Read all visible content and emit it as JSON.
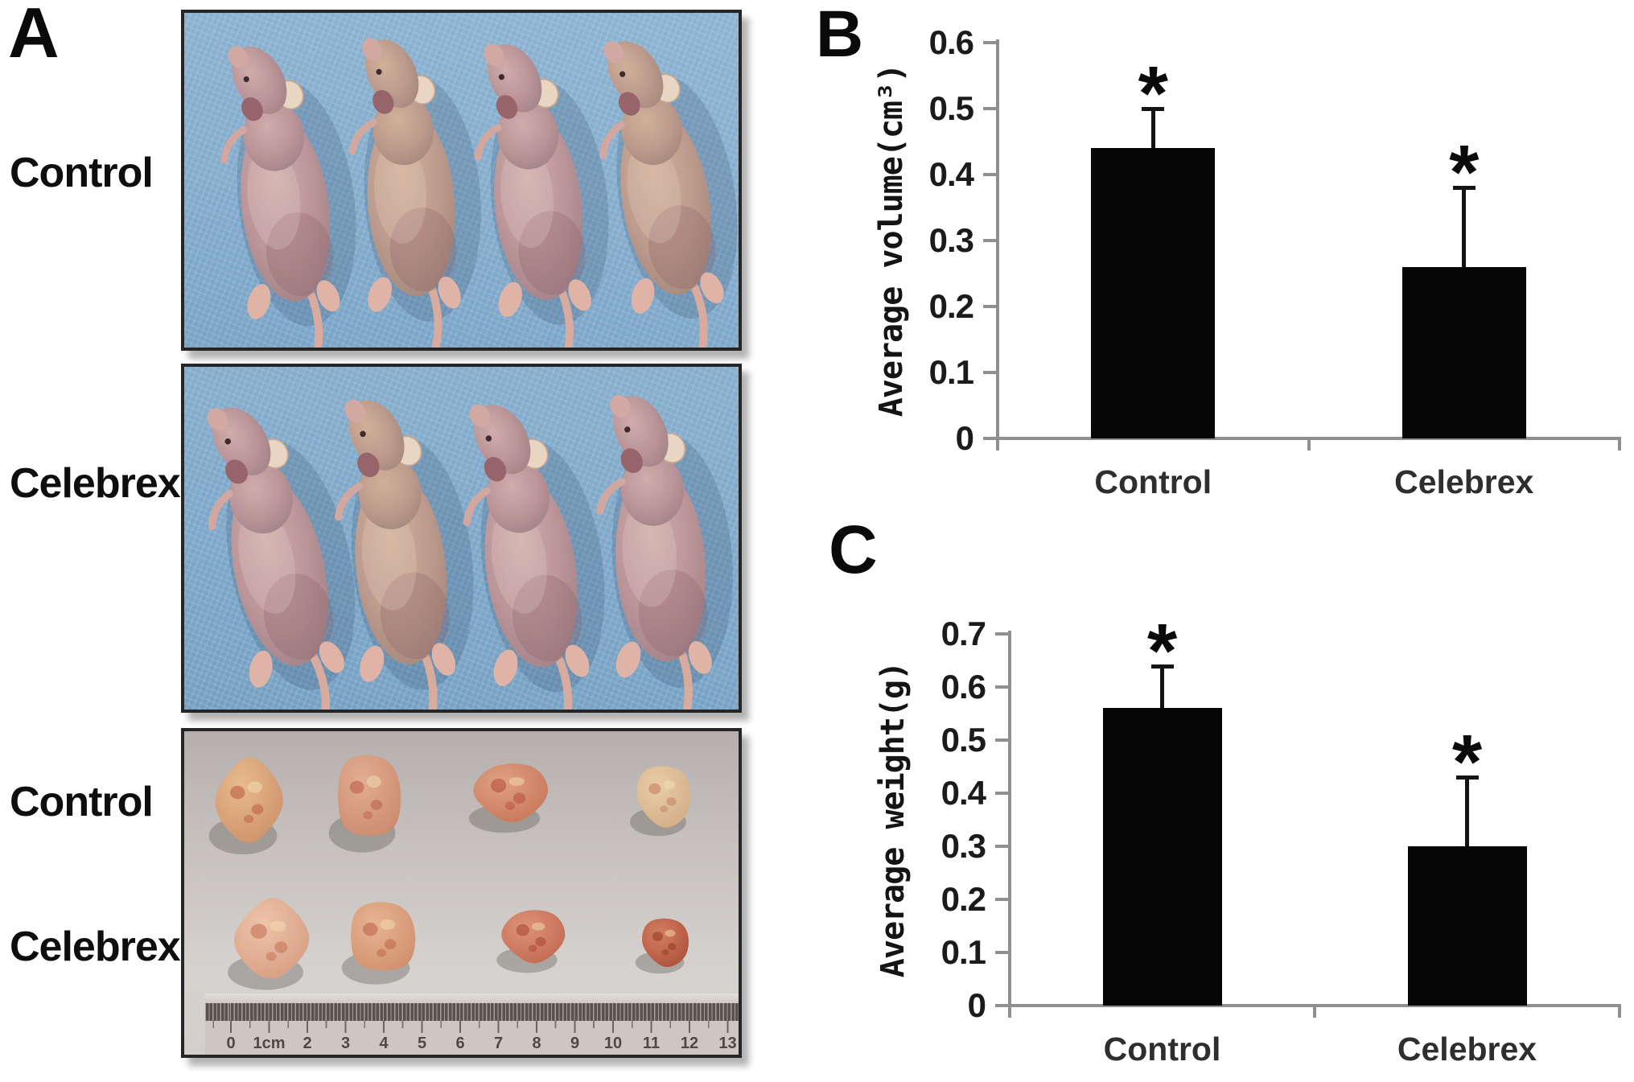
{
  "figure": {
    "panels": {
      "a": {
        "letter": "A"
      },
      "b": {
        "letter": "B"
      },
      "c": {
        "letter": "C"
      }
    },
    "panel_a": {
      "row_labels": [
        {
          "id": "control-mice",
          "text": "Control"
        },
        {
          "id": "celebrex-mice",
          "text": "Celebrex"
        },
        {
          "id": "control-tumors",
          "text": "Control"
        },
        {
          "id": "celebrex-tumors",
          "text": "Celebrex"
        }
      ],
      "photos": [
        {
          "id": "mice-control",
          "kind": "nude-mice-photo",
          "subject_count": 4
        },
        {
          "id": "mice-celebrex",
          "kind": "nude-mice-photo",
          "subject_count": 4
        },
        {
          "id": "tumors",
          "kind": "excised-tumors-photo",
          "rows": [
            {
              "group": "Control",
              "count": 4
            },
            {
              "group": "Celebrex",
              "count": 4
            }
          ]
        }
      ],
      "ruler": {
        "numbers": [
          "0",
          "1cm",
          "2",
          "3",
          "4",
          "5",
          "6",
          "7",
          "8",
          "9",
          "10",
          "11",
          "12",
          "13"
        ]
      }
    }
  },
  "chart_data": [
    {
      "id": "tumor-volume",
      "panel": "B",
      "type": "bar",
      "categories": [
        "Control",
        "Celebrex"
      ],
      "values": [
        0.44,
        0.26
      ],
      "error_upper": [
        0.5,
        0.38
      ],
      "significance": [
        "*",
        "*"
      ],
      "title": "",
      "xlabel": "",
      "ylabel": "Average volume(cm³)",
      "ylim": [
        0,
        0.6
      ],
      "ytick_labels": [
        "0",
        "0.1",
        "0.2",
        "0.3",
        "0.4",
        "0.5",
        "0.6"
      ],
      "grid": false,
      "legend": null,
      "bar_color": "#060606",
      "axis_color": "#8f8f8f"
    },
    {
      "id": "tumor-weight",
      "panel": "C",
      "type": "bar",
      "categories": [
        "Control",
        "Celebrex"
      ],
      "values": [
        0.56,
        0.3
      ],
      "error_upper": [
        0.64,
        0.43
      ],
      "significance": [
        "*",
        "*"
      ],
      "title": "",
      "xlabel": "",
      "ylabel": "Average weight(g)",
      "ylim": [
        0,
        0.7
      ],
      "ytick_labels": [
        "0",
        "0.1",
        "0.2",
        "0.3",
        "0.4",
        "0.5",
        "0.6",
        "0.7"
      ],
      "grid": false,
      "legend": null,
      "bar_color": "#060606",
      "axis_color": "#8f8f8f"
    }
  ]
}
